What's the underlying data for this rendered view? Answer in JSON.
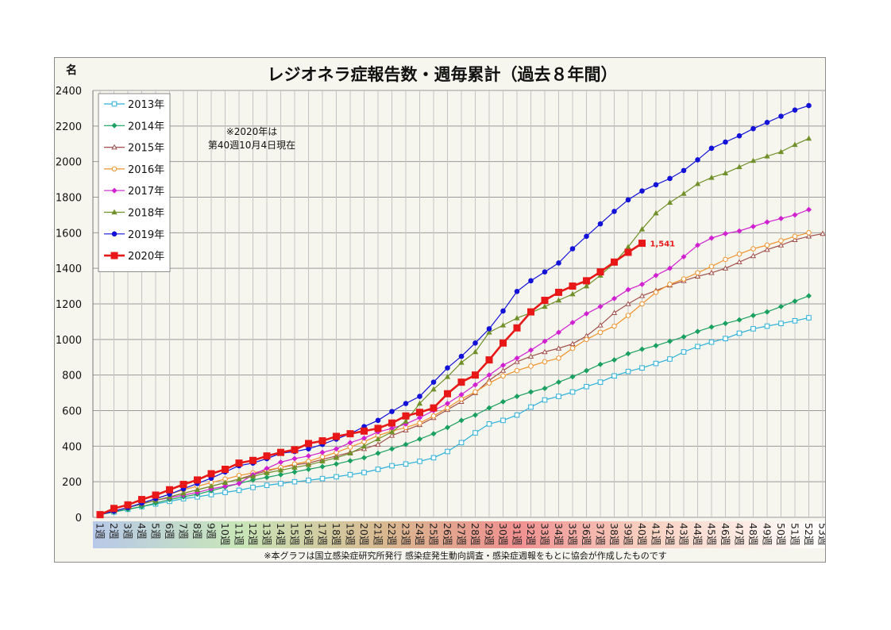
{
  "chart_data": {
    "type": "line",
    "title": "レジオネラ症報告数・週毎累計（過去８年間）",
    "ylabel": "名",
    "ylim": [
      0,
      2400
    ],
    "yticks": [
      0,
      200,
      400,
      600,
      800,
      1000,
      1200,
      1400,
      1600,
      1800,
      2000,
      2200,
      2400
    ],
    "grid": true,
    "legend_placement": "top-left",
    "categories": [
      "1週",
      "2週",
      "3週",
      "4週",
      "5週",
      "6週",
      "7週",
      "8週",
      "9週",
      "10週",
      "11週",
      "12週",
      "13週",
      "14週",
      "15週",
      "16週",
      "17週",
      "18週",
      "19週",
      "20週",
      "21週",
      "22週",
      "23週",
      "24週",
      "25週",
      "26週",
      "27週",
      "28週",
      "29週",
      "30週",
      "31週",
      "32週",
      "33週",
      "34週",
      "35週",
      "36週",
      "37週",
      "38週",
      "39週",
      "40週",
      "41週",
      "42週",
      "43週",
      "44週",
      "45週",
      "46週",
      "47週",
      "48週",
      "49週",
      "50週",
      "51週",
      "52週",
      "53週"
    ],
    "series": [
      {
        "name": "2013年",
        "color": "#2ab0d8",
        "marker": "square-open",
        "values": [
          15,
          30,
          45,
          60,
          75,
          90,
          105,
          115,
          128,
          140,
          152,
          168,
          180,
          190,
          200,
          208,
          218,
          228,
          240,
          252,
          270,
          290,
          300,
          315,
          335,
          370,
          420,
          475,
          525,
          545,
          575,
          620,
          660,
          680,
          705,
          735,
          760,
          795,
          820,
          840,
          865,
          890,
          930,
          960,
          985,
          1005,
          1035,
          1060,
          1075,
          1090,
          1105,
          1122,
          null
        ]
      },
      {
        "name": "2014年",
        "color": "#1aa060",
        "marker": "diamond",
        "values": [
          15,
          30,
          45,
          60,
          80,
          100,
          115,
          130,
          150,
          170,
          190,
          210,
          225,
          240,
          255,
          270,
          285,
          300,
          318,
          335,
          360,
          385,
          410,
          440,
          470,
          505,
          545,
          575,
          615,
          650,
          680,
          705,
          725,
          760,
          790,
          825,
          860,
          885,
          920,
          945,
          965,
          990,
          1015,
          1045,
          1070,
          1090,
          1110,
          1135,
          1155,
          1185,
          1215,
          1245,
          null
        ]
      },
      {
        "name": "2015年",
        "color": "#a0504a",
        "marker": "triangle-open",
        "values": [
          15,
          35,
          55,
          75,
          95,
          115,
          135,
          155,
          175,
          195,
          215,
          240,
          260,
          280,
          295,
          305,
          325,
          345,
          365,
          385,
          410,
          460,
          490,
          520,
          560,
          605,
          650,
          700,
          770,
          825,
          875,
          905,
          930,
          950,
          975,
          1020,
          1080,
          1150,
          1200,
          1245,
          1275,
          1305,
          1330,
          1355,
          1375,
          1400,
          1435,
          1470,
          1505,
          1530,
          1560,
          1580,
          1595
        ]
      },
      {
        "name": "2016年",
        "color": "#f0922c",
        "marker": "circle-open",
        "values": [
          15,
          35,
          55,
          80,
          105,
          130,
          155,
          175,
          195,
          215,
          235,
          250,
          265,
          280,
          300,
          315,
          340,
          365,
          395,
          425,
          460,
          485,
          505,
          530,
          570,
          615,
          665,
          705,
          755,
          795,
          825,
          850,
          875,
          895,
          950,
          1000,
          1040,
          1075,
          1135,
          1200,
          1265,
          1310,
          1340,
          1375,
          1410,
          1450,
          1480,
          1510,
          1530,
          1555,
          1580,
          1600,
          null
        ]
      },
      {
        "name": "2017年",
        "color": "#d020d0",
        "marker": "diamond",
        "values": [
          15,
          35,
          55,
          75,
          95,
          110,
          125,
          140,
          160,
          175,
          190,
          240,
          275,
          310,
          330,
          345,
          365,
          385,
          420,
          445,
          480,
          500,
          525,
          560,
          600,
          640,
          690,
          745,
          800,
          855,
          895,
          940,
          990,
          1040,
          1095,
          1145,
          1185,
          1230,
          1280,
          1310,
          1360,
          1400,
          1465,
          1530,
          1570,
          1595,
          1610,
          1635,
          1660,
          1680,
          1700,
          1730,
          null
        ]
      },
      {
        "name": "2018年",
        "color": "#70902a",
        "marker": "triangle",
        "values": [
          15,
          35,
          55,
          75,
          95,
          115,
          135,
          155,
          175,
          195,
          215,
          230,
          250,
          265,
          280,
          295,
          315,
          335,
          360,
          400,
          440,
          480,
          540,
          640,
          720,
          790,
          870,
          930,
          1040,
          1080,
          1120,
          1150,
          1185,
          1220,
          1255,
          1300,
          1360,
          1430,
          1520,
          1620,
          1710,
          1770,
          1820,
          1875,
          1910,
          1935,
          1970,
          2005,
          2030,
          2055,
          2095,
          2130,
          null
        ]
      },
      {
        "name": "2019年",
        "color": "#1212d8",
        "marker": "circle",
        "values": [
          15,
          35,
          55,
          80,
          105,
          130,
          160,
          190,
          220,
          255,
          290,
          305,
          330,
          360,
          370,
          385,
          410,
          440,
          470,
          510,
          545,
          595,
          640,
          680,
          760,
          840,
          905,
          980,
          1060,
          1160,
          1270,
          1330,
          1380,
          1430,
          1510,
          1580,
          1650,
          1720,
          1785,
          1835,
          1870,
          1905,
          1950,
          2010,
          2075,
          2110,
          2145,
          2185,
          2220,
          2255,
          2290,
          2315,
          null
        ]
      },
      {
        "name": "2020年",
        "color": "#e81818",
        "marker": "square",
        "values": [
          15,
          50,
          70,
          100,
          125,
          155,
          185,
          210,
          245,
          270,
          305,
          320,
          345,
          365,
          380,
          415,
          430,
          455,
          470,
          485,
          500,
          530,
          570,
          590,
          615,
          695,
          760,
          800,
          885,
          980,
          1065,
          1155,
          1220,
          1265,
          1300,
          1330,
          1380,
          1435,
          1490,
          1541,
          null,
          null,
          null,
          null,
          null,
          null,
          null,
          null,
          null,
          null,
          null,
          null,
          null
        ]
      }
    ],
    "annotations": [
      {
        "text": "1,541",
        "color": "#e81818",
        "series": "2020年",
        "x": "40週",
        "y": 1541
      },
      {
        "text": "※2020年は",
        "line": 1
      },
      {
        "text": "第40週10月4日現在",
        "line": 2
      }
    ],
    "note": "※本グラフは国立感染症研究所発行 感染症発生動向調査・感染症週報をもとに協会が作成したものです"
  }
}
